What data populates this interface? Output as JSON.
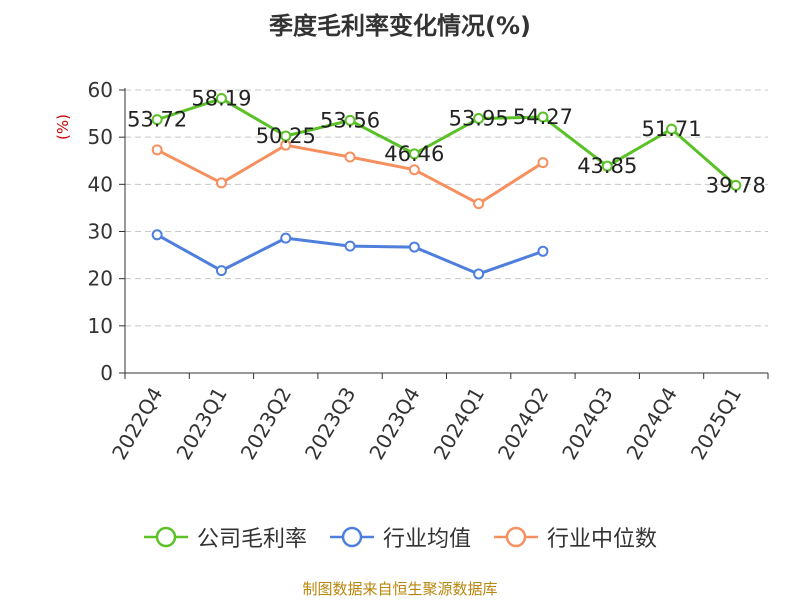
{
  "chart_data": {
    "type": "line",
    "title": "季度毛利率变化情况(%)",
    "ylabel": "(%)",
    "ylim": [
      0,
      60
    ],
    "yticks": [
      0,
      10,
      20,
      30,
      40,
      50,
      60
    ],
    "grid": true,
    "legend_position": "bottom",
    "categories": [
      "2022Q4",
      "2023Q1",
      "2023Q2",
      "2023Q3",
      "2023Q4",
      "2024Q1",
      "2024Q2",
      "2024Q3",
      "2024Q4",
      "2025Q1"
    ],
    "series": [
      {
        "name": "公司毛利率",
        "color": "#5ac127",
        "show_labels": true,
        "values": [
          53.72,
          58.19,
          50.25,
          53.56,
          46.46,
          53.95,
          54.27,
          43.85,
          51.71,
          39.78
        ]
      },
      {
        "name": "行业均值",
        "color": "#4f7fdc",
        "show_labels": false,
        "values": [
          29.3,
          21.7,
          28.6,
          26.9,
          26.7,
          21.0,
          25.8,
          null,
          null,
          null
        ]
      },
      {
        "name": "行业中位数",
        "color": "#f6905f",
        "show_labels": false,
        "values": [
          47.3,
          40.3,
          48.3,
          45.8,
          43.1,
          35.9,
          44.6,
          null,
          null,
          null
        ]
      }
    ]
  },
  "footer": "制图数据来自恒生聚源数据库"
}
